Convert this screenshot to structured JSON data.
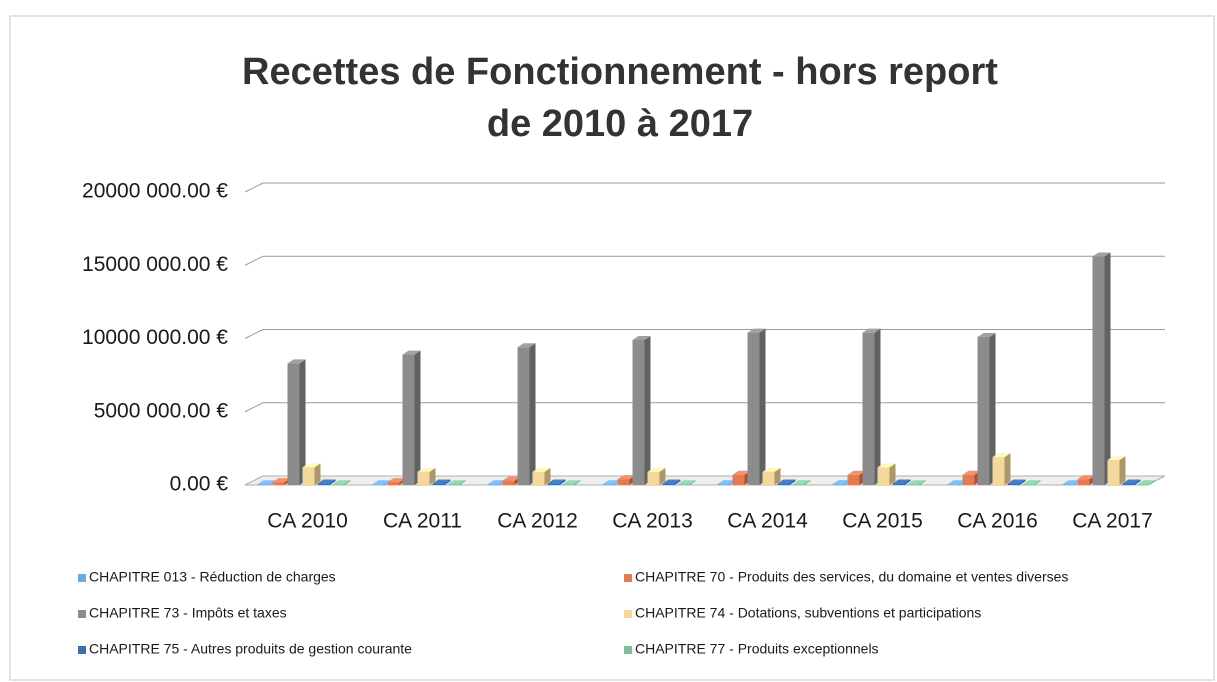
{
  "chart_data": {
    "type": "bar3d",
    "title": [
      "Recettes de Fonctionnement - hors report",
      "de 2010 à 2017"
    ],
    "categories": [
      "CA 2010",
      "CA 2011",
      "CA 2012",
      "CA 2013",
      "CA 2014",
      "CA 2015",
      "CA 2016",
      "CA 2017"
    ],
    "series": [
      {
        "name": "CHAPITRE 013 - Réduction de charges",
        "color": "#6fa8dc",
        "values": [
          50000,
          50000,
          50000,
          50000,
          60000,
          60000,
          50000,
          50000
        ]
      },
      {
        "name": "CHAPITRE 70 - Produits des services, du domaine et ventes diverses",
        "color": "#e07b54",
        "values": [
          200000,
          200000,
          300000,
          400000,
          700000,
          700000,
          700000,
          400000
        ]
      },
      {
        "name": "CHAPITRE 73 - Impôts et taxes",
        "color": "#8c8c8c",
        "values": [
          8300000,
          8900000,
          9400000,
          9900000,
          10400000,
          10400000,
          10100000,
          15600000
        ]
      },
      {
        "name": "CHAPITRE 74 - Dotations, subventions et participations",
        "color": "#f3d79c",
        "values": [
          1200000,
          900000,
          900000,
          900000,
          900000,
          1200000,
          1900000,
          1700000
        ]
      },
      {
        "name": "CHAPITRE 75 - Autres produits de gestion courante",
        "color": "#3d6fb0",
        "values": [
          100000,
          100000,
          100000,
          100000,
          100000,
          100000,
          100000,
          100000
        ]
      },
      {
        "name": "CHAPITRE 77 - Produits exceptionnels",
        "color": "#7fbf9a",
        "values": [
          50000,
          50000,
          50000,
          50000,
          50000,
          50000,
          50000,
          50000
        ]
      }
    ],
    "ylim": [
      0,
      20000000
    ],
    "yticks": [
      {
        "value": 0,
        "label": "0.00 €"
      },
      {
        "value": 5000000,
        "label": "5000 000.00 €"
      },
      {
        "value": 10000000,
        "label": "10000 000.00 €"
      },
      {
        "value": 15000000,
        "label": "15000 000.00 €"
      },
      {
        "value": 20000000,
        "label": "20000 000.00 €"
      }
    ],
    "grid": true
  }
}
